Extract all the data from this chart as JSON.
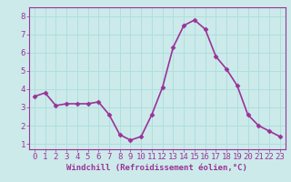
{
  "x": [
    0,
    1,
    2,
    3,
    4,
    5,
    6,
    7,
    8,
    9,
    10,
    11,
    12,
    13,
    14,
    15,
    16,
    17,
    18,
    19,
    20,
    21,
    22,
    23
  ],
  "y": [
    3.6,
    3.8,
    3.1,
    3.2,
    3.2,
    3.2,
    3.3,
    2.6,
    1.5,
    1.2,
    1.4,
    2.6,
    4.1,
    6.3,
    7.5,
    7.8,
    7.3,
    5.8,
    5.1,
    4.2,
    2.6,
    2.0,
    1.7,
    1.4
  ],
  "line_color": "#993399",
  "marker": "D",
  "marker_size": 2.5,
  "xlabel": "Windchill (Refroidissement éolien,°C)",
  "xlabel_fontsize": 6.5,
  "xlim": [
    -0.5,
    23.5
  ],
  "ylim": [
    0.7,
    8.5
  ],
  "xtick_labels": [
    "0",
    "1",
    "2",
    "3",
    "4",
    "5",
    "6",
    "7",
    "8",
    "9",
    "10",
    "11",
    "12",
    "13",
    "14",
    "15",
    "16",
    "17",
    "18",
    "19",
    "20",
    "21",
    "22",
    "23"
  ],
  "ytick_values": [
    1,
    2,
    3,
    4,
    5,
    6,
    7,
    8
  ],
  "grid_color": "#b0dede",
  "bg_color": "#cceaea",
  "tick_color": "#993399",
  "tick_fontsize": 6.5,
  "line_width": 1.2
}
